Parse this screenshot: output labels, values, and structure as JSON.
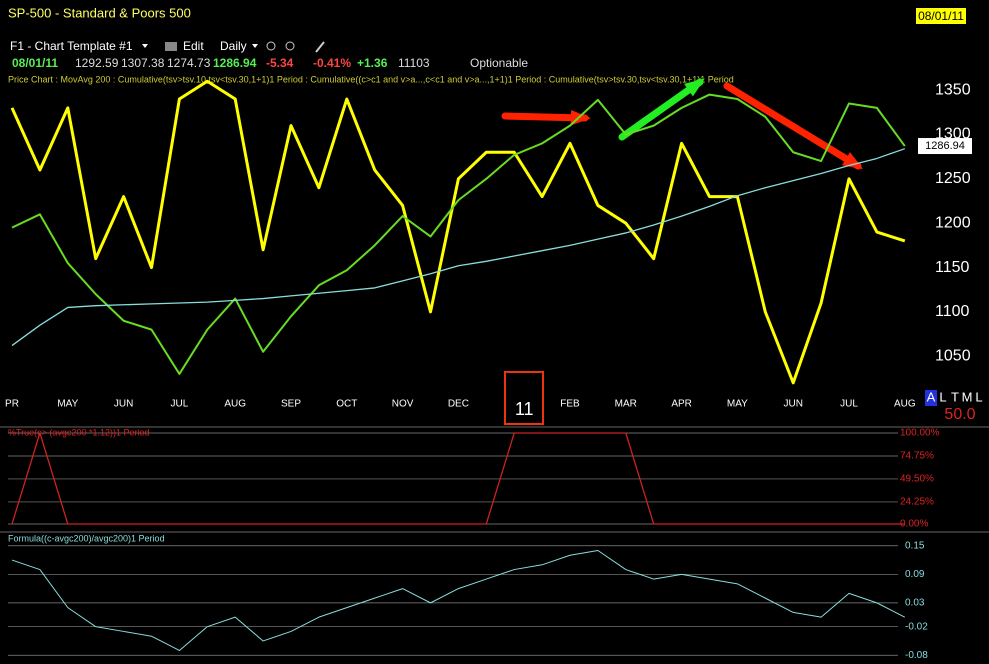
{
  "window": {
    "title": "SP-500  -  Standard & Poors 500",
    "date": "08/01/11"
  },
  "toolbar": {
    "template": "F1 - Chart Template #1",
    "edit": "Edit",
    "interval": "Daily"
  },
  "quote": {
    "date": "08/01/11",
    "open": "1292.59",
    "high": "1307.38",
    "low": "1274.73",
    "close": "1286.94",
    "change": "-5.34",
    "change_pct": "-0.41%",
    "change2": "+1.36",
    "volume": "11103",
    "status": "Optionable"
  },
  "indicator_legend": "Price Chart : MovAvg 200 : Cumulative(tsv>tsv.10,tsv<tsv.30,1+1)1 Period : Cumulative((c>c1 and v>a...,c<c1 and v>a...,1+1)1 Period : Cumulative(tsv>tsv.30,tsv<tsv.30,1+1)1 Period",
  "watchlist_letters": [
    "A",
    "L",
    "T",
    "M",
    "L"
  ],
  "side_value": "50.0",
  "chart_data": [
    {
      "type": "line",
      "categories": [
        "PR",
        null,
        "MAY",
        null,
        "JUN",
        null,
        "JUL",
        null,
        "AUG",
        null,
        "SEP",
        null,
        "OCT",
        null,
        "NOV",
        null,
        "DEC",
        null,
        "11",
        null,
        "FEB",
        null,
        "MAR",
        null,
        "APR",
        null,
        "MAY",
        null,
        "JUN",
        null,
        "JUL",
        null,
        "AUG"
      ],
      "series": [
        {
          "color": "#ffff00",
          "values": [
            1330,
            1260,
            1330,
            1160,
            1230,
            1150,
            1340,
            1360,
            1340,
            1170,
            1310,
            1240,
            1340,
            1260,
            1220,
            1100,
            1250,
            1280,
            1280,
            1230,
            1290,
            1220,
            1200,
            1160,
            1290,
            1230,
            1230,
            1100,
            1020,
            1110,
            1250,
            1190,
            1180
          ]
        },
        {
          "color": "#66dd22",
          "values": [
            1195,
            1210,
            1155,
            1120,
            1090,
            1080,
            1030,
            1080,
            1115,
            1055,
            1095,
            1130,
            1147,
            1175,
            1208,
            1185,
            1226,
            1250,
            1277,
            1290,
            1310,
            1339,
            1300,
            1310,
            1330,
            1345,
            1340,
            1320,
            1280,
            1270,
            1335,
            1330,
            1287
          ]
        },
        {
          "color": "#88dddd",
          "values": [
            1062,
            1085,
            1105,
            1107,
            1108,
            1109,
            1110,
            1111,
            1113,
            1115,
            1118,
            1121,
            1124,
            1127,
            1135,
            1143,
            1152,
            1157,
            1163,
            1169,
            1175,
            1182,
            1189,
            1198,
            1208,
            1219,
            1231,
            1240,
            1248,
            1256,
            1265,
            1273,
            1284
          ]
        }
      ],
      "ylim": [
        995,
        1384
      ],
      "yticks": [
        1050,
        1100,
        1150,
        1200,
        1250,
        1300,
        1350
      ]
    },
    {
      "type": "line",
      "title": "%True(c> (avgc200 *1.12))1 Period",
      "color": "#cc2222",
      "values": [
        0,
        100,
        0,
        0,
        0,
        0,
        0,
        0,
        0,
        0,
        0,
        0,
        0,
        0,
        0,
        0,
        0,
        0,
        100,
        100,
        100,
        100,
        100,
        0,
        0,
        0,
        0,
        0,
        0,
        0,
        0,
        0,
        0
      ],
      "ylim": [
        0,
        100
      ],
      "yticks": [
        {
          "value": 0,
          "label": "0.00%"
        },
        {
          "value": 24.25,
          "label": "24.25%"
        },
        {
          "value": 49.5,
          "label": "49.50%"
        },
        {
          "value": 74.75,
          "label": "74.75%"
        },
        {
          "value": 100,
          "label": "100.00%"
        }
      ],
      "grid": true
    },
    {
      "type": "line",
      "title": "Formula((c-avgc200)/avgc200)1 Period",
      "color": "#88dddd",
      "values": [
        0.12,
        0.1,
        0.02,
        -0.02,
        -0.03,
        -0.04,
        -0.07,
        -0.02,
        0,
        -0.05,
        -0.03,
        0,
        0.02,
        0.04,
        0.06,
        0.03,
        0.06,
        0.08,
        0.1,
        0.11,
        0.13,
        0.14,
        0.1,
        0.08,
        0.09,
        0.08,
        0.07,
        0.04,
        0.01,
        0,
        0.05,
        0.03,
        0
      ],
      "ylim": [
        -0.09,
        0.16
      ],
      "yticks": [
        -0.08,
        -0.02,
        0.03,
        0.09,
        0.15
      ],
      "grid": true
    }
  ]
}
